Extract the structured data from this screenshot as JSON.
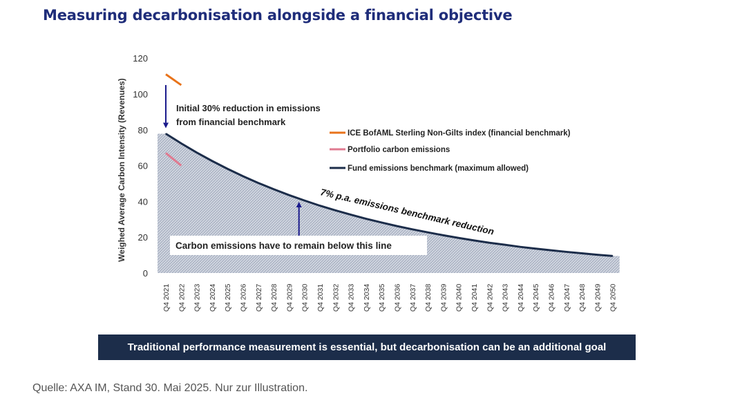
{
  "page": {
    "title": "Measuring decarbonisation alongside a financial objective",
    "banner": "Traditional performance measurement is essential, but decarbonisation can be an additional goal",
    "source": "Quelle: AXA IM, Stand 30. Mai 2025. Nur zur Illustration."
  },
  "chart_data": {
    "type": "line",
    "title": "",
    "xlabel": "",
    "ylabel": "Weighed Average Carbon Intensity (Revenues)",
    "ylim": [
      0,
      120
    ],
    "yticks": [
      0,
      20,
      40,
      60,
      80,
      100,
      120
    ],
    "grid": false,
    "legend_position": "top-right",
    "categories": [
      "Q4 2021",
      "Q4 2022",
      "Q4 2023",
      "Q4 2024",
      "Q4 2025",
      "Q4 2026",
      "Q4 2027",
      "Q4 2028",
      "Q4 2029",
      "Q4 2030",
      "Q4 2031",
      "Q4 2032",
      "Q4 2033",
      "Q4 2034",
      "Q4 2035",
      "Q4 2036",
      "Q4 2037",
      "Q4 2038",
      "Q4 2039",
      "Q4 2040",
      "Q4 2041",
      "Q4 2042",
      "Q4 2043",
      "Q4 2044",
      "Q4 2045",
      "Q4 2046",
      "Q4 2047",
      "Q4 2048",
      "Q4 2049",
      "Q4 2050"
    ],
    "series": [
      {
        "name": "ICE BofAML Sterling Non-Gilts index (financial benchmark)",
        "color": "#e8731a",
        "points": [
          {
            "x": "Q4 2021",
            "y": 111
          },
          {
            "x": "Q4 2022",
            "y": 105
          }
        ]
      },
      {
        "name": "Portfolio carbon emissions",
        "color": "#e07a90",
        "points": [
          {
            "x": "Q4 2021",
            "y": 67
          },
          {
            "x": "Q4 2022",
            "y": 60
          }
        ]
      },
      {
        "name": "Fund emissions benchmark (maximum allowed)",
        "color": "#1c2d4a",
        "values": [
          77.8,
          72.4,
          67.3,
          62.6,
          58.2,
          54.1,
          50.3,
          46.8,
          43.5,
          40.5,
          37.6,
          35.0,
          32.6,
          30.3,
          28.2,
          26.2,
          24.4,
          22.7,
          21.1,
          19.6,
          18.2,
          16.9,
          15.8,
          14.6,
          13.6,
          12.7,
          11.8,
          11.0,
          10.2,
          9.5
        ]
      }
    ],
    "annotations": {
      "initial_reduction": [
        "Initial 30% reduction in emissions",
        "from financial benchmark"
      ],
      "reduction_rate": "7% p.a. emissions benchmark reduction",
      "below_line": "Carbon emissions have to remain below this line"
    },
    "colors": {
      "fill": "#c9d0dc",
      "arrow": "#1a1a8c",
      "axis_text": "#333333"
    }
  }
}
